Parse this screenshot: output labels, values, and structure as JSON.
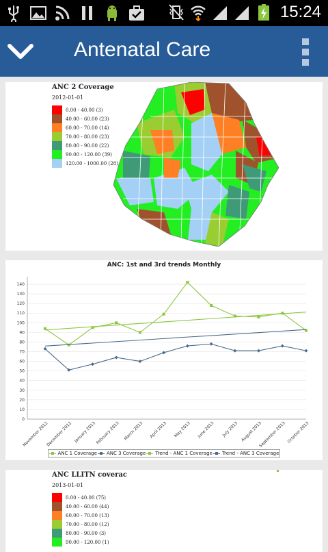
{
  "status_bar": {
    "time": "15:24",
    "icons": [
      "usb-icon",
      "image-icon",
      "rss-icon",
      "pause-icon",
      "android-icon",
      "briefcase-check-icon",
      "vibrate-mute-icon",
      "wifi-icon",
      "signal-icon",
      "signal-icon",
      "battery-charging-icon"
    ]
  },
  "app_bar": {
    "title": "Antenatal Care",
    "back_icon": "chevron-down-icon",
    "menu_icon": "overflow-menu-icon",
    "color": "#275c98"
  },
  "map1": {
    "title": "ANC 2 Coverage",
    "date": "2012-01-01",
    "legend": [
      {
        "label": "0.00 - 40.00 (3)",
        "color": "#ff0000"
      },
      {
        "label": "40.00 - 60.00 (23)",
        "color": "#a0522d"
      },
      {
        "label": "60.00 - 70.00 (14)",
        "color": "#ff7f24"
      },
      {
        "label": "70.00 - 80.00 (23)",
        "color": "#9acd32"
      },
      {
        "label": "80.00 - 90.00 (22)",
        "color": "#3f9a78"
      },
      {
        "label": "90.00 - 120.00 (39)",
        "color": "#22ee22"
      },
      {
        "label": "120.00 - 1000.00 (28)",
        "color": "#a4d0f5"
      }
    ]
  },
  "chart_data": {
    "type": "line",
    "title": "ANC: 1st and 3rd trends Monthly",
    "categories": [
      "November 2012",
      "December 2012",
      "January 2013",
      "February 2013",
      "March 2013",
      "April 2013",
      "May 2013",
      "June 2013",
      "July 2013",
      "August 2013",
      "September 2013",
      "October 2013"
    ],
    "ylim": [
      0,
      145
    ],
    "yticks": [
      0,
      10,
      20,
      30,
      40,
      50,
      60,
      70,
      80,
      90,
      100,
      110,
      120,
      130,
      140
    ],
    "grid": true,
    "legend_position": "bottom",
    "series": [
      {
        "name": "ANC 1 Coverage",
        "color": "#8cc63f",
        "marker": "square",
        "values": [
          94,
          77,
          95,
          100,
          90,
          109,
          142,
          118,
          107,
          106,
          110,
          92
        ]
      },
      {
        "name": "ANC 3 Coverage",
        "color": "#4a6a8a",
        "marker": "diamond",
        "values": [
          73,
          51,
          57,
          64,
          60,
          69,
          76,
          78,
          71,
          71,
          76,
          71
        ]
      },
      {
        "name": "Trend - ANC 1 Coverage",
        "color": "#8cc63f",
        "marker": "none",
        "values": [
          92.5,
          94.2,
          95.9,
          97.6,
          99.3,
          101.0,
          102.6,
          104.3,
          106.0,
          107.7,
          109.4,
          111.1
        ]
      },
      {
        "name": "Trend - ANC 3 Coverage",
        "color": "#4a6a8a",
        "marker": "none",
        "values": [
          75.8,
          77.4,
          78.9,
          80.5,
          82.0,
          83.6,
          85.2,
          86.7,
          88.3,
          89.8,
          91.4,
          93.0
        ]
      }
    ]
  },
  "map2": {
    "title": "ANC LLITN coverac",
    "date": "2013-01-01",
    "legend": [
      {
        "label": "0.00 - 40.00 (75)",
        "color": "#ff0000"
      },
      {
        "label": "40.00 - 60.00 (44)",
        "color": "#a0522d"
      },
      {
        "label": "60.00 - 70.00 (13)",
        "color": "#ff7f24"
      },
      {
        "label": "70.00 - 80.00 (12)",
        "color": "#9acd32"
      },
      {
        "label": "80.00 - 90.00 (3)",
        "color": "#3f9a78"
      },
      {
        "label": "90.00 - 120.00 (1)",
        "color": "#22ee22"
      }
    ]
  }
}
